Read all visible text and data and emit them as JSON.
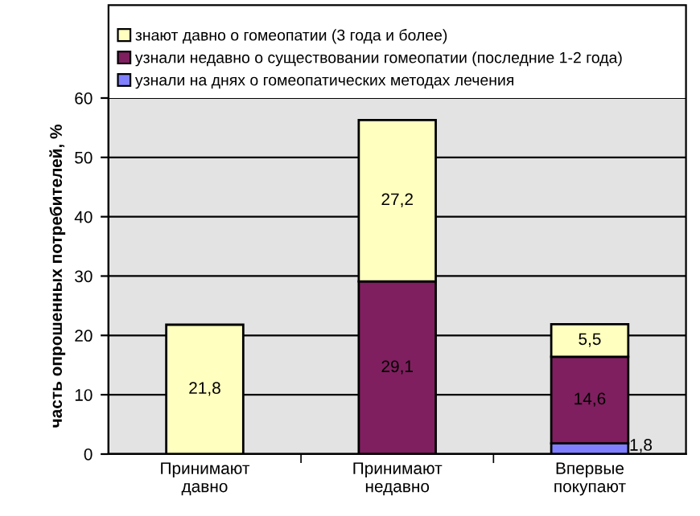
{
  "chart_data": {
    "type": "bar",
    "stacked": true,
    "ylabel": "часть опрошенных потребителей, %",
    "categories": [
      "Принимают\nдавно",
      "Принимают\nнедавно",
      "Впервые\nпокупают"
    ],
    "series": [
      {
        "name": "узнали на днях о гомеопатических методах лечения",
        "color": "#8080ff",
        "values": [
          null,
          null,
          1.8
        ],
        "value_labels": [
          null,
          null,
          "1,8"
        ]
      },
      {
        "name": "узнали недавно о существовании гомеопатии (последние 1-2 года)",
        "color": "#7f1f5f",
        "values": [
          null,
          29.1,
          14.6
        ],
        "value_labels": [
          null,
          "29,1",
          "14,6"
        ]
      },
      {
        "name": "знают давно о гомеопатии (3 года и более)",
        "color": "#ffffc0",
        "values": [
          21.8,
          27.2,
          5.5
        ],
        "value_labels": [
          "21,8",
          "27,2",
          "5,5"
        ]
      }
    ],
    "ylim": [
      0,
      60
    ],
    "yticks": [
      0,
      10,
      20,
      30,
      40,
      50,
      60
    ],
    "grid": "y",
    "legend": "top"
  }
}
